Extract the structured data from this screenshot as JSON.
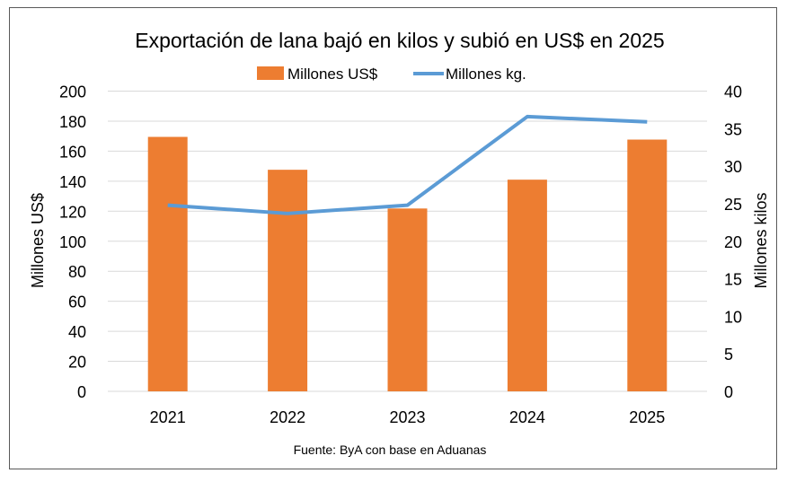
{
  "chart_data": {
    "type": "bar+line",
    "title": "Exportación de lana bajó en kilos y subió en US$ en 2025",
    "categories": [
      "2021",
      "2022",
      "2023",
      "2024",
      "2025"
    ],
    "series": [
      {
        "name": "Millones US$",
        "type": "bar",
        "axis": "left",
        "color": "#ED7D31",
        "values": [
          169.5,
          147.6,
          121.8,
          141.0,
          167.7
        ]
      },
      {
        "name": "Millones kg.",
        "type": "line",
        "axis": "right",
        "color": "#5B9BD5",
        "values": [
          24.8,
          23.7,
          24.8,
          36.6,
          35.9
        ]
      }
    ],
    "ylabel": "Millones US$",
    "ylabel_right": "Millones kilos",
    "ylim": [
      0,
      200
    ],
    "ylim_right": [
      0,
      40
    ],
    "yticks": [
      "0",
      "20",
      "40",
      "60",
      "80",
      "100",
      "120",
      "140",
      "160",
      "180",
      "200"
    ],
    "yticks_right": [
      "0",
      "5",
      "10",
      "15",
      "20",
      "25",
      "30",
      "35",
      "40"
    ],
    "grid": true,
    "legend": "top-center",
    "source": "Fuente: ByA con base en Aduanas"
  }
}
